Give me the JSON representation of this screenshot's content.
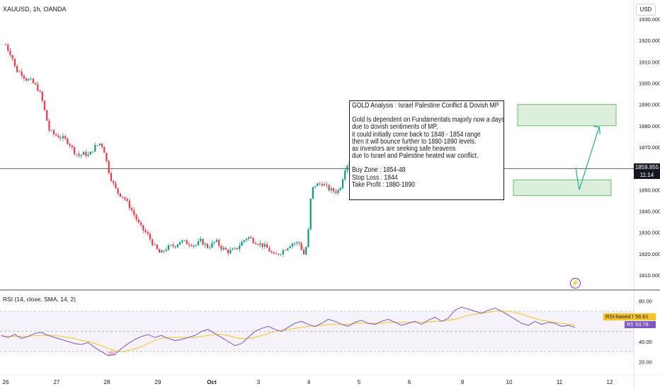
{
  "header": {
    "symbol": "XAUUSD, 1h, OANDA",
    "currency_button": "USD"
  },
  "analysis_note": {
    "lines": [
      "GOLD Analysis : Israel Palestine Conflict & Dovish MP",
      "",
      "Gold Is dependent on Fundamentals majorly now a days",
      "due to dovish sentiments of MP,",
      "it could initially come back to 1848 - 1854 range",
      "then it will bounce further to 1880-1890 levels.",
      "as investors are seeking safe heavens",
      "due to Israel and Palestine heated war conflict.",
      "",
      "Buy Zone : 1854-48",
      "Stop Loss : 1844",
      "Take Profit : 1880-1890"
    ]
  },
  "price_tag": {
    "price": "1859.855",
    "countdown": "11:14"
  },
  "rsi_panel": {
    "title": "RSI (14, close, SMA, 14, 2)",
    "ma_label": "RSI-based MA",
    "ma_value": "56.61",
    "rsi_label": "RSI",
    "rsi_value": "53.78"
  },
  "colors": {
    "up": "#089981",
    "down": "#f23645",
    "rsi": "#7e57c2",
    "rsi_ma": "#f7c325",
    "zone": "#4caf50"
  },
  "chart_data": [
    {
      "type": "candlestick",
      "y_ticks": [
        1810,
        1820,
        1830,
        1840,
        1850,
        1860,
        1870,
        1880,
        1890,
        1900,
        1910,
        1920,
        1930
      ],
      "y_tick_labels": [
        "1810.000",
        "1820.000",
        "1830.000",
        "1840.000",
        "1850.000",
        "1860.000",
        "1870.000",
        "1880.000",
        "1890.000",
        "1900.000",
        "1910.000",
        "1920.000",
        "1930.000"
      ],
      "ylim": [
        1805,
        1932
      ],
      "x_ticks": [
        "26",
        "27",
        "28",
        "29",
        "Oct",
        "3",
        "4",
        "5",
        "6",
        "9",
        "10",
        "11",
        "12"
      ],
      "close_path": [
        [
          0,
          1918
        ],
        [
          0.06,
          1915
        ],
        [
          0.12,
          1913
        ],
        [
          0.2,
          1906
        ],
        [
          0.3,
          1905
        ],
        [
          0.4,
          1902
        ],
        [
          0.5,
          1901
        ],
        [
          0.62,
          1898
        ],
        [
          0.7,
          1894
        ],
        [
          0.78,
          1886
        ],
        [
          0.86,
          1878
        ],
        [
          0.95,
          1876
        ],
        [
          1.05,
          1875
        ],
        [
          1.15,
          1874
        ],
        [
          1.25,
          1872
        ],
        [
          1.35,
          1868
        ],
        [
          1.45,
          1866
        ],
        [
          1.55,
          1867
        ],
        [
          1.65,
          1866
        ],
        [
          1.75,
          1870
        ],
        [
          1.88,
          1872
        ],
        [
          1.95,
          1868
        ],
        [
          2.02,
          1860
        ],
        [
          2.1,
          1854
        ],
        [
          2.2,
          1849
        ],
        [
          2.35,
          1846
        ],
        [
          2.5,
          1840
        ],
        [
          2.65,
          1833
        ],
        [
          2.8,
          1829
        ],
        [
          2.95,
          1823
        ],
        [
          3.05,
          1820
        ],
        [
          3.2,
          1823
        ],
        [
          3.35,
          1824
        ],
        [
          3.45,
          1826
        ],
        [
          3.6,
          1825
        ],
        [
          3.75,
          1824
        ],
        [
          3.85,
          1826
        ],
        [
          4.0,
          1823
        ],
        [
          4.15,
          1826
        ],
        [
          4.25,
          1823
        ],
        [
          4.4,
          1821
        ],
        [
          4.55,
          1822
        ],
        [
          4.65,
          1825
        ],
        [
          4.78,
          1828
        ],
        [
          4.9,
          1826
        ],
        [
          5.0,
          1825
        ],
        [
          5.15,
          1823
        ],
        [
          5.3,
          1819
        ],
        [
          5.45,
          1821
        ],
        [
          5.55,
          1823
        ],
        [
          5.65,
          1825
        ],
        [
          5.8,
          1825
        ],
        [
          5.9,
          1819
        ],
        [
          5.97,
          1828
        ],
        [
          6.02,
          1845
        ],
        [
          6.08,
          1852
        ],
        [
          6.25,
          1853
        ],
        [
          6.4,
          1850
        ],
        [
          6.55,
          1849
        ],
        [
          6.62,
          1852
        ],
        [
          6.7,
          1860
        ],
        [
          6.8,
          1864
        ],
        [
          6.9,
          1866
        ],
        [
          7.0,
          1864
        ],
        [
          7.12,
          1858
        ],
        [
          7.2,
          1857
        ],
        [
          7.3,
          1860
        ],
        [
          7.4,
          1859
        ],
        [
          7.55,
          1861
        ],
        [
          7.7,
          1860
        ]
      ],
      "annotations": {
        "note_title": "GOLD Analysis : Israel Palestine Conflict & Dovish MP",
        "buy_zone": [
          1848,
          1854
        ],
        "target_zone": [
          1880,
          1890
        ],
        "last_price": 1859.855
      }
    },
    {
      "type": "line",
      "title": "RSI (14, close, SMA, 14, 2)",
      "y_ticks": [
        20,
        40,
        60,
        80
      ],
      "y_tick_labels": [
        "20.00",
        "40.00",
        "",
        "80.00"
      ],
      "ylim": [
        14,
        84
      ],
      "bands": [
        30,
        70
      ],
      "series": [
        {
          "name": "RSI",
          "values": [
            46,
            44,
            47,
            43,
            45,
            48,
            49,
            46,
            44,
            42,
            40,
            38,
            37,
            39,
            34,
            30,
            26,
            27,
            33,
            38,
            42,
            45,
            47,
            44,
            46,
            43,
            41,
            42,
            44,
            46,
            50,
            52,
            48,
            44,
            40,
            36,
            38,
            44,
            50,
            53,
            55,
            52,
            50,
            54,
            58,
            60,
            57,
            55,
            58,
            62,
            60,
            57,
            55,
            59,
            61,
            58,
            57,
            60,
            62,
            59,
            56,
            58,
            60,
            57,
            61,
            64,
            60,
            63,
            71,
            74,
            72,
            70,
            68,
            71,
            73,
            70,
            66,
            62,
            58,
            56,
            60,
            57,
            59,
            58,
            55,
            56,
            54
          ]
        },
        {
          "name": "RSI-based MA",
          "values": [
            45,
            45,
            45,
            45,
            45,
            46,
            46,
            46,
            46,
            45,
            44,
            43,
            41,
            40,
            38,
            36,
            33,
            31,
            30,
            31,
            33,
            35,
            38,
            41,
            43,
            44,
            44,
            44,
            44,
            44,
            45,
            46,
            47,
            47,
            46,
            44,
            43,
            43,
            44,
            46,
            48,
            50,
            51,
            52,
            53,
            54,
            55,
            55,
            56,
            57,
            57,
            57,
            57,
            58,
            58,
            58,
            58,
            58,
            59,
            59,
            59,
            59,
            59,
            59,
            59,
            60,
            60,
            61,
            62,
            64,
            66,
            67,
            68,
            69,
            70,
            70,
            70,
            69,
            67,
            65,
            63,
            61,
            60,
            59,
            58,
            57,
            56.6
          ]
        }
      ]
    }
  ]
}
